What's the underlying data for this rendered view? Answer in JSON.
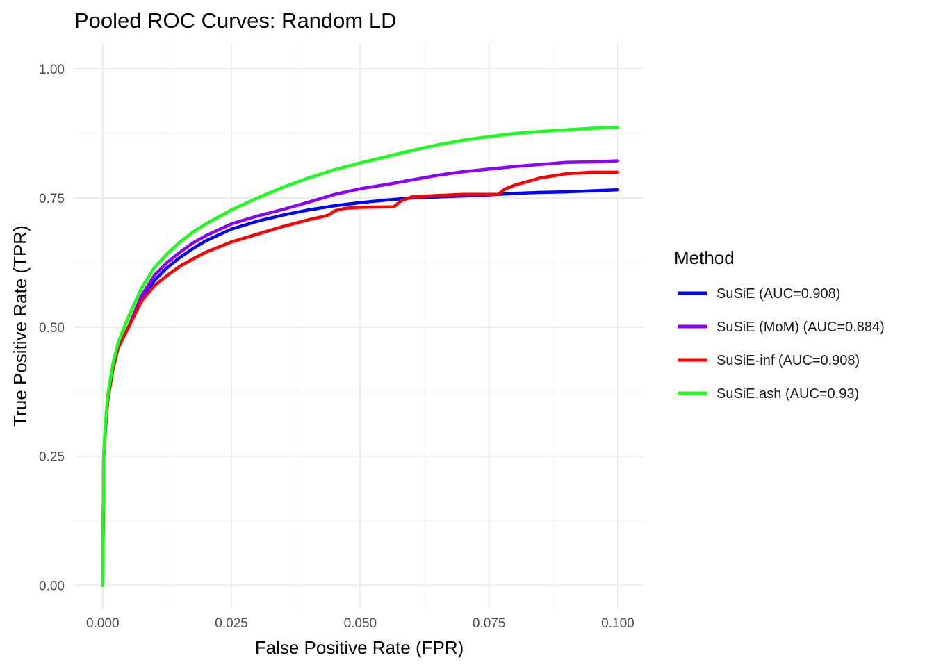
{
  "chart_data": {
    "type": "line",
    "title": "Pooled ROC Curves: Random LD",
    "xlabel": "False Positive Rate (FPR)",
    "ylabel": "True Positive Rate (TPR)",
    "xlim": [
      -0.0055,
      0.105
    ],
    "ylim": [
      -0.045,
      1.05
    ],
    "x_ticks": [
      0.0,
      0.025,
      0.05,
      0.075,
      0.1
    ],
    "x_tick_labels": [
      "0.000",
      "0.025",
      "0.050",
      "0.075",
      "0.100"
    ],
    "y_ticks": [
      0.0,
      0.25,
      0.5,
      0.75,
      1.0
    ],
    "y_tick_labels": [
      "0.00",
      "0.25",
      "0.50",
      "0.75",
      "1.00"
    ],
    "grid": true,
    "legend": {
      "title": "Method",
      "position": "right"
    },
    "series": [
      {
        "name": "SuSiE (AUC=0.908)",
        "color": "#0000ff",
        "points": [
          [
            0,
            0
          ],
          [
            0.0002,
            0.25
          ],
          [
            0.0005,
            0.3
          ],
          [
            0.001,
            0.36
          ],
          [
            0.002,
            0.42
          ],
          [
            0.003,
            0.46
          ],
          [
            0.005,
            0.5
          ],
          [
            0.0075,
            0.55
          ],
          [
            0.01,
            0.59
          ],
          [
            0.0125,
            0.615
          ],
          [
            0.015,
            0.635
          ],
          [
            0.0175,
            0.652
          ],
          [
            0.02,
            0.667
          ],
          [
            0.025,
            0.69
          ],
          [
            0.03,
            0.705
          ],
          [
            0.035,
            0.717
          ],
          [
            0.04,
            0.727
          ],
          [
            0.045,
            0.735
          ],
          [
            0.05,
            0.741
          ],
          [
            0.055,
            0.746
          ],
          [
            0.06,
            0.75
          ],
          [
            0.065,
            0.752
          ],
          [
            0.07,
            0.754
          ],
          [
            0.075,
            0.756
          ],
          [
            0.08,
            0.759
          ],
          [
            0.085,
            0.761
          ],
          [
            0.09,
            0.762
          ],
          [
            0.095,
            0.764
          ],
          [
            0.1,
            0.766
          ]
        ]
      },
      {
        "name": "SuSiE (MoM) (AUC=0.884)",
        "color": "#8c00ff",
        "points": [
          [
            0,
            0
          ],
          [
            0.0002,
            0.25
          ],
          [
            0.0005,
            0.3
          ],
          [
            0.001,
            0.36
          ],
          [
            0.002,
            0.42
          ],
          [
            0.003,
            0.46
          ],
          [
            0.005,
            0.5
          ],
          [
            0.0075,
            0.56
          ],
          [
            0.01,
            0.6
          ],
          [
            0.0125,
            0.625
          ],
          [
            0.015,
            0.645
          ],
          [
            0.0175,
            0.663
          ],
          [
            0.02,
            0.677
          ],
          [
            0.025,
            0.7
          ],
          [
            0.03,
            0.715
          ],
          [
            0.035,
            0.728
          ],
          [
            0.04,
            0.742
          ],
          [
            0.045,
            0.757
          ],
          [
            0.05,
            0.768
          ],
          [
            0.055,
            0.776
          ],
          [
            0.06,
            0.785
          ],
          [
            0.065,
            0.794
          ],
          [
            0.07,
            0.801
          ],
          [
            0.075,
            0.806
          ],
          [
            0.08,
            0.811
          ],
          [
            0.085,
            0.815
          ],
          [
            0.09,
            0.819
          ],
          [
            0.095,
            0.82
          ],
          [
            0.1,
            0.822
          ]
        ]
      },
      {
        "name": "SuSiE-inf (AUC=0.908)",
        "color": "#ff0000",
        "points": [
          [
            0,
            0
          ],
          [
            0.0002,
            0.25
          ],
          [
            0.0005,
            0.3
          ],
          [
            0.001,
            0.36
          ],
          [
            0.002,
            0.42
          ],
          [
            0.003,
            0.46
          ],
          [
            0.005,
            0.5
          ],
          [
            0.0075,
            0.55
          ],
          [
            0.01,
            0.58
          ],
          [
            0.0125,
            0.6
          ],
          [
            0.015,
            0.618
          ],
          [
            0.0175,
            0.632
          ],
          [
            0.02,
            0.645
          ],
          [
            0.025,
            0.665
          ],
          [
            0.03,
            0.68
          ],
          [
            0.035,
            0.695
          ],
          [
            0.04,
            0.708
          ],
          [
            0.0435,
            0.716
          ],
          [
            0.044,
            0.718
          ],
          [
            0.045,
            0.725
          ],
          [
            0.047,
            0.73
          ],
          [
            0.05,
            0.732
          ],
          [
            0.0565,
            0.733
          ],
          [
            0.058,
            0.745
          ],
          [
            0.06,
            0.752
          ],
          [
            0.065,
            0.755
          ],
          [
            0.07,
            0.757
          ],
          [
            0.0768,
            0.757
          ],
          [
            0.078,
            0.767
          ],
          [
            0.08,
            0.775
          ],
          [
            0.085,
            0.789
          ],
          [
            0.09,
            0.797
          ],
          [
            0.095,
            0.8
          ],
          [
            0.1,
            0.8
          ]
        ]
      },
      {
        "name": "SuSiE.ash (AUC=0.93)",
        "color": "#1aff1a",
        "points": [
          [
            0,
            0
          ],
          [
            0.0002,
            0.25
          ],
          [
            0.0005,
            0.31
          ],
          [
            0.001,
            0.37
          ],
          [
            0.002,
            0.43
          ],
          [
            0.003,
            0.47
          ],
          [
            0.005,
            0.52
          ],
          [
            0.0075,
            0.575
          ],
          [
            0.01,
            0.615
          ],
          [
            0.0125,
            0.642
          ],
          [
            0.015,
            0.665
          ],
          [
            0.0175,
            0.684
          ],
          [
            0.02,
            0.7
          ],
          [
            0.025,
            0.727
          ],
          [
            0.03,
            0.75
          ],
          [
            0.035,
            0.771
          ],
          [
            0.04,
            0.789
          ],
          [
            0.045,
            0.805
          ],
          [
            0.05,
            0.818
          ],
          [
            0.055,
            0.83
          ],
          [
            0.06,
            0.842
          ],
          [
            0.065,
            0.853
          ],
          [
            0.07,
            0.862
          ],
          [
            0.075,
            0.869
          ],
          [
            0.08,
            0.875
          ],
          [
            0.085,
            0.879
          ],
          [
            0.09,
            0.882
          ],
          [
            0.095,
            0.885
          ],
          [
            0.1,
            0.887
          ]
        ]
      }
    ]
  }
}
